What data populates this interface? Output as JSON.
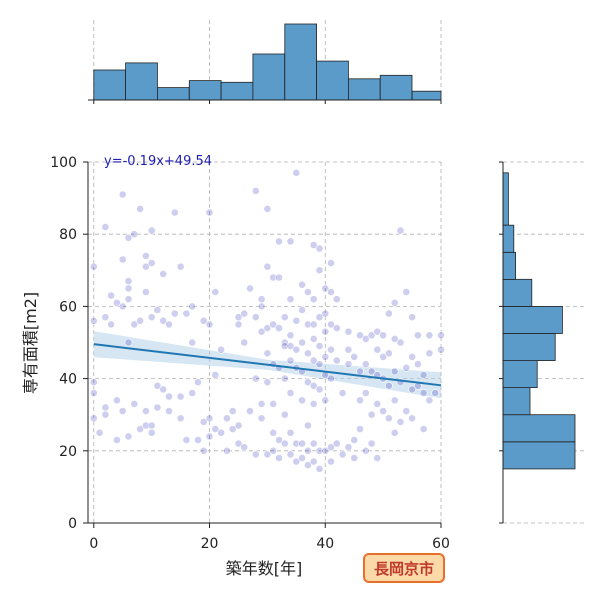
{
  "chart_data": {
    "type": "scatter",
    "xlabel": "築年数[年]",
    "ylabel": "専有面積[m2]",
    "xlim": [
      -1,
      60
    ],
    "ylim": [
      0,
      100
    ],
    "xticks": [
      0,
      20,
      40,
      60
    ],
    "yticks": [
      0,
      20,
      40,
      60,
      80,
      100
    ],
    "grid": true,
    "regression": {
      "equation": "y=-0.19x+49.54",
      "slope": -0.19,
      "intercept": 49.54,
      "x_range": [
        0,
        60
      ]
    },
    "badge": "長岡京市",
    "colors": {
      "points": "#1f1fb4",
      "line": "#1f77b4",
      "band": "#aecde6",
      "hist": "#5b9bc9",
      "badge_fill": "#fcd9a8",
      "badge_border": "#e8702a"
    },
    "top_histogram": {
      "bin_edges": [
        0,
        5.5,
        11,
        16.5,
        22,
        27.5,
        33,
        38.5,
        44,
        49.5,
        55,
        60
      ],
      "counts": [
        17,
        21,
        7,
        11,
        10,
        26,
        43,
        22,
        12,
        14,
        5
      ]
    },
    "right_histogram": {
      "bin_edges": [
        15,
        22.5,
        30,
        37.5,
        45,
        52.5,
        60,
        67.5,
        75,
        82.5,
        97
      ],
      "counts": [
        40,
        40,
        15,
        19,
        29,
        33,
        16,
        7,
        6,
        3
      ]
    },
    "points": [
      [
        0,
        71
      ],
      [
        0,
        56
      ],
      [
        0,
        39
      ],
      [
        0,
        36
      ],
      [
        0,
        29
      ],
      [
        1,
        25
      ],
      [
        2,
        82
      ],
      [
        2,
        57
      ],
      [
        2,
        32
      ],
      [
        2,
        30
      ],
      [
        3,
        63
      ],
      [
        3,
        55
      ],
      [
        4,
        61
      ],
      [
        4,
        34
      ],
      [
        4,
        23
      ],
      [
        5,
        91
      ],
      [
        5,
        73
      ],
      [
        5,
        60
      ],
      [
        5,
        31
      ],
      [
        6,
        79
      ],
      [
        6,
        67
      ],
      [
        6,
        65
      ],
      [
        6,
        62
      ],
      [
        6,
        50
      ],
      [
        6,
        24
      ],
      [
        7,
        80
      ],
      [
        7,
        55
      ],
      [
        7,
        33
      ],
      [
        8,
        87
      ],
      [
        8,
        56
      ],
      [
        8,
        26
      ],
      [
        9,
        74
      ],
      [
        9,
        71
      ],
      [
        9,
        64
      ],
      [
        9,
        31
      ],
      [
        9,
        27
      ],
      [
        10,
        81
      ],
      [
        10,
        72
      ],
      [
        10,
        57
      ],
      [
        10,
        27
      ],
      [
        10,
        25
      ],
      [
        11,
        59
      ],
      [
        11,
        38
      ],
      [
        11,
        32
      ],
      [
        12,
        69
      ],
      [
        12,
        56
      ],
      [
        12,
        37
      ],
      [
        13,
        55
      ],
      [
        13,
        35
      ],
      [
        13,
        31
      ],
      [
        14,
        86
      ],
      [
        14,
        58
      ],
      [
        15,
        71
      ],
      [
        15,
        35
      ],
      [
        15,
        29
      ],
      [
        16,
        58
      ],
      [
        16,
        23
      ],
      [
        17,
        60
      ],
      [
        17,
        50
      ],
      [
        17,
        36
      ],
      [
        18,
        39
      ],
      [
        18,
        23
      ],
      [
        19,
        56
      ],
      [
        19,
        28
      ],
      [
        19,
        20
      ],
      [
        20,
        86
      ],
      [
        20,
        55
      ],
      [
        20,
        29
      ],
      [
        20,
        24
      ],
      [
        21,
        64
      ],
      [
        21,
        41
      ],
      [
        21,
        26
      ],
      [
        22,
        48
      ],
      [
        22,
        25
      ],
      [
        23,
        29
      ],
      [
        23,
        20
      ],
      [
        24,
        31
      ],
      [
        24,
        26
      ],
      [
        25,
        57
      ],
      [
        25,
        55
      ],
      [
        25,
        27
      ],
      [
        25,
        22
      ],
      [
        26,
        58
      ],
      [
        26,
        50
      ],
      [
        26,
        21
      ],
      [
        27,
        65
      ],
      [
        27,
        31
      ],
      [
        28,
        92
      ],
      [
        28,
        57
      ],
      [
        28,
        40
      ],
      [
        28,
        19
      ],
      [
        29,
        62
      ],
      [
        29,
        60
      ],
      [
        29,
        53
      ],
      [
        29,
        33
      ],
      [
        29,
        29
      ],
      [
        30,
        87
      ],
      [
        30,
        71
      ],
      [
        30,
        54
      ],
      [
        30,
        47
      ],
      [
        30,
        39
      ],
      [
        30,
        19
      ],
      [
        31,
        68
      ],
      [
        31,
        55
      ],
      [
        31,
        44
      ],
      [
        31,
        33
      ],
      [
        31,
        25
      ],
      [
        31,
        20
      ],
      [
        32,
        78
      ],
      [
        32,
        68
      ],
      [
        32,
        54
      ],
      [
        32,
        43
      ],
      [
        32,
        23
      ],
      [
        32,
        18
      ],
      [
        33,
        57
      ],
      [
        33,
        50
      ],
      [
        33,
        49
      ],
      [
        33,
        40
      ],
      [
        33,
        30
      ],
      [
        33,
        22
      ],
      [
        34,
        78
      ],
      [
        34,
        62
      ],
      [
        34,
        52
      ],
      [
        34,
        49
      ],
      [
        34,
        45
      ],
      [
        34,
        36
      ],
      [
        34,
        25
      ],
      [
        34,
        19
      ],
      [
        35,
        97
      ],
      [
        35,
        56
      ],
      [
        35,
        48
      ],
      [
        35,
        43
      ],
      [
        35,
        22
      ],
      [
        35,
        17
      ],
      [
        36,
        66
      ],
      [
        36,
        59
      ],
      [
        36,
        50
      ],
      [
        36,
        42
      ],
      [
        36,
        34
      ],
      [
        36,
        22
      ],
      [
        36,
        18
      ],
      [
        37,
        64
      ],
      [
        37,
        55
      ],
      [
        37,
        47
      ],
      [
        37,
        39
      ],
      [
        37,
        27
      ],
      [
        37,
        20
      ],
      [
        37,
        16
      ],
      [
        38,
        77
      ],
      [
        38,
        62
      ],
      [
        38,
        55
      ],
      [
        38,
        51
      ],
      [
        38,
        45
      ],
      [
        38,
        38
      ],
      [
        38,
        33
      ],
      [
        38,
        22
      ],
      [
        38,
        17
      ],
      [
        39,
        76
      ],
      [
        39,
        70
      ],
      [
        39,
        57
      ],
      [
        39,
        49
      ],
      [
        39,
        44
      ],
      [
        39,
        37
      ],
      [
        39,
        20
      ],
      [
        39,
        15
      ],
      [
        40,
        65
      ],
      [
        40,
        58
      ],
      [
        40,
        53
      ],
      [
        40,
        46
      ],
      [
        40,
        41
      ],
      [
        40,
        34
      ],
      [
        40,
        20
      ],
      [
        41,
        72
      ],
      [
        41,
        64
      ],
      [
        41,
        55
      ],
      [
        41,
        48
      ],
      [
        41,
        40
      ],
      [
        41,
        21
      ],
      [
        41,
        17
      ],
      [
        42,
        62
      ],
      [
        42,
        54
      ],
      [
        42,
        45
      ],
      [
        42,
        22
      ],
      [
        43,
        36
      ],
      [
        43,
        19
      ],
      [
        44,
        53
      ],
      [
        44,
        48
      ],
      [
        44,
        44
      ],
      [
        44,
        21
      ],
      [
        45,
        46
      ],
      [
        45,
        23
      ],
      [
        45,
        18
      ],
      [
        46,
        52
      ],
      [
        46,
        42
      ],
      [
        46,
        34
      ],
      [
        46,
        26
      ],
      [
        47,
        51
      ],
      [
        47,
        44
      ],
      [
        47,
        36
      ],
      [
        47,
        20
      ],
      [
        48,
        52
      ],
      [
        48,
        42
      ],
      [
        48,
        30
      ],
      [
        48,
        22
      ],
      [
        49,
        53
      ],
      [
        49,
        48
      ],
      [
        49,
        41
      ],
      [
        49,
        33
      ],
      [
        49,
        18
      ],
      [
        50,
        52
      ],
      [
        50,
        46
      ],
      [
        50,
        40
      ],
      [
        50,
        31
      ],
      [
        51,
        58
      ],
      [
        51,
        47
      ],
      [
        51,
        38
      ],
      [
        51,
        29
      ],
      [
        52,
        61
      ],
      [
        52,
        51
      ],
      [
        52,
        42
      ],
      [
        52,
        34
      ],
      [
        52,
        25
      ],
      [
        53,
        81
      ],
      [
        53,
        50
      ],
      [
        53,
        39
      ],
      [
        53,
        28
      ],
      [
        54,
        64
      ],
      [
        54,
        43
      ],
      [
        54,
        31
      ],
      [
        55,
        57
      ],
      [
        55,
        46
      ],
      [
        55,
        37
      ],
      [
        55,
        29
      ],
      [
        56,
        52
      ],
      [
        56,
        44
      ],
      [
        56,
        38
      ],
      [
        57,
        41
      ],
      [
        57,
        36
      ],
      [
        57,
        26
      ],
      [
        58,
        52
      ],
      [
        58,
        47
      ],
      [
        58,
        34
      ],
      [
        59,
        36
      ],
      [
        60,
        52
      ],
      [
        60,
        48
      ]
    ]
  }
}
